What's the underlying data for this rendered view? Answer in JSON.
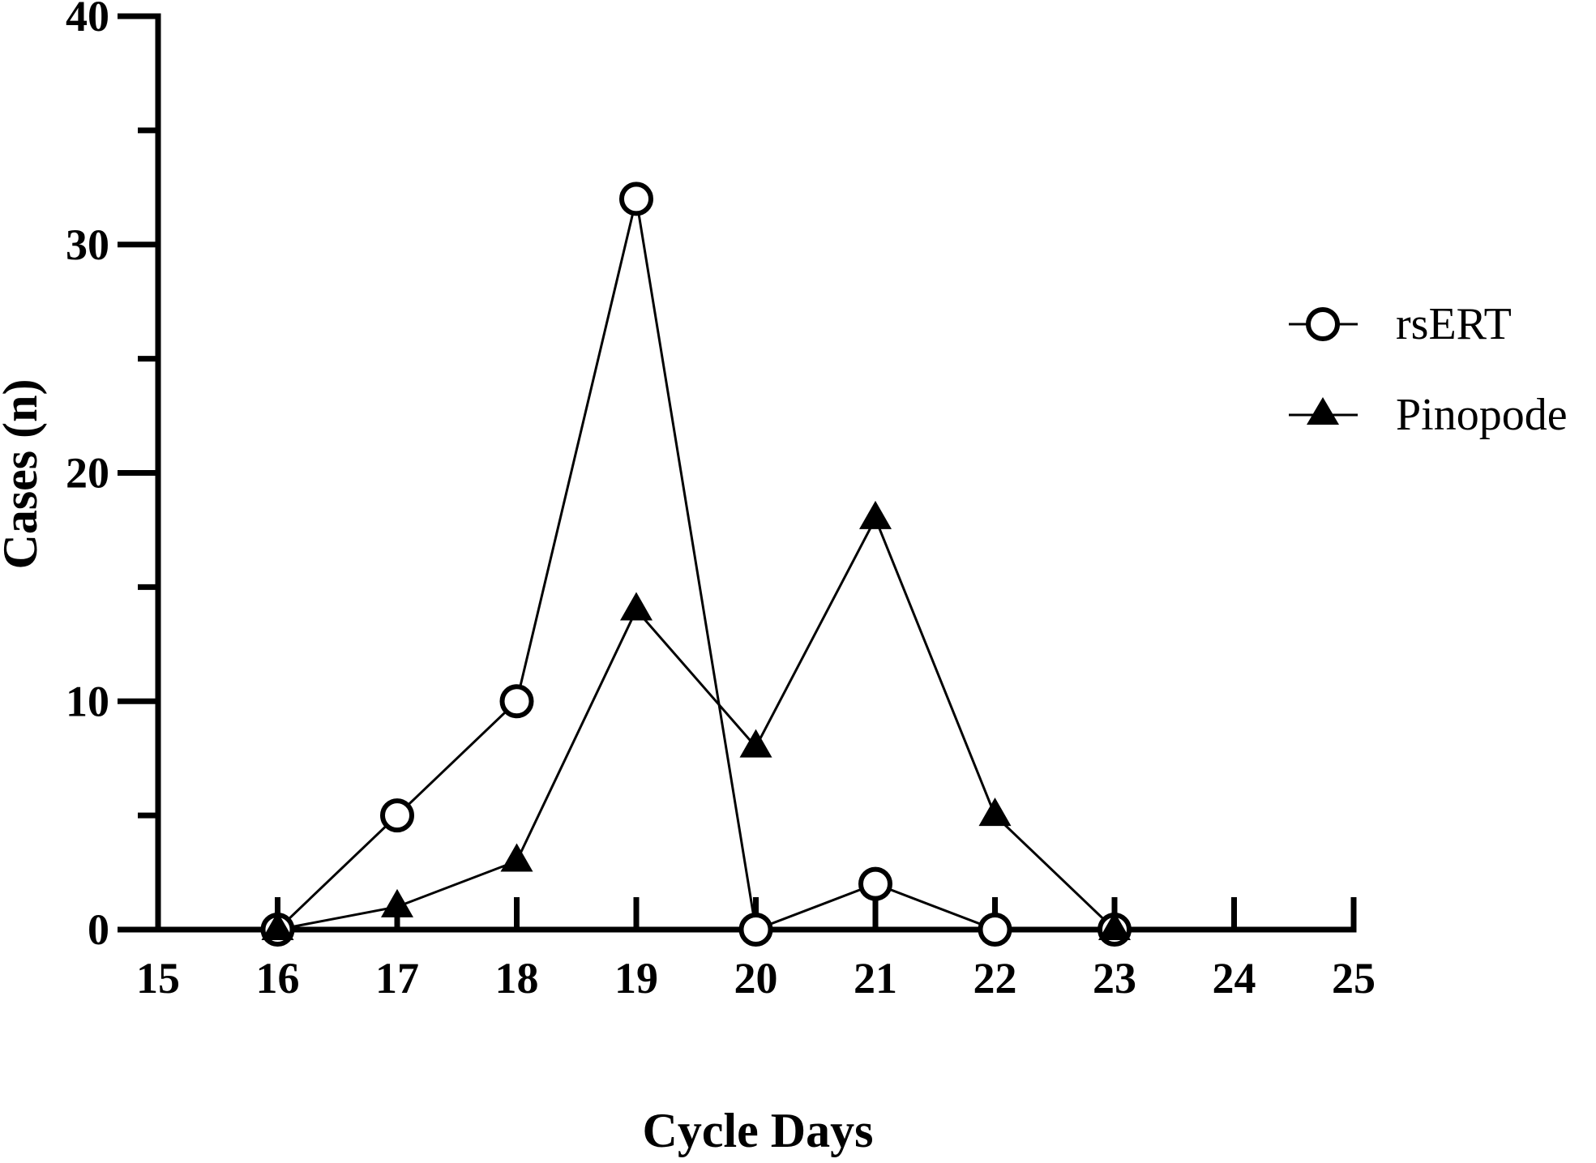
{
  "chart_data": {
    "type": "line",
    "xlabel": "Cycle Days",
    "ylabel": "Cases (n)",
    "xlim": [
      15,
      25
    ],
    "ylim": [
      0,
      40
    ],
    "x_ticks": [
      15,
      16,
      17,
      18,
      19,
      20,
      21,
      22,
      23,
      24,
      25
    ],
    "y_ticks": [
      0,
      10,
      20,
      30,
      40
    ],
    "y_minor_ticks": [
      5,
      15,
      25,
      35
    ],
    "grid": false,
    "legend_position": "right",
    "series": [
      {
        "name": "rsERT",
        "marker": "open-circle",
        "x": [
          16,
          17,
          18,
          19,
          20,
          21,
          22,
          23
        ],
        "values": [
          0,
          5,
          10,
          32,
          0,
          2,
          0,
          0
        ]
      },
      {
        "name": "Pinopode",
        "marker": "filled-triangle",
        "x": [
          16,
          17,
          18,
          19,
          20,
          21,
          22,
          23
        ],
        "values": [
          0,
          1,
          3,
          14,
          8,
          18,
          5,
          0
        ]
      }
    ]
  }
}
